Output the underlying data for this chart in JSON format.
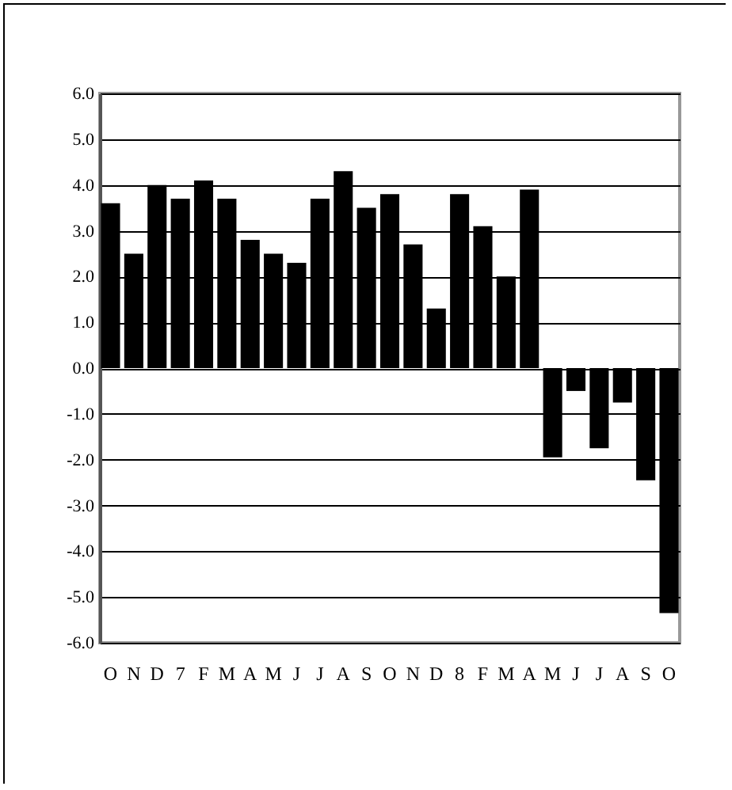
{
  "chart_data": {
    "type": "bar",
    "categories": [
      "O",
      "N",
      "D",
      "7",
      "F",
      "M",
      "A",
      "M",
      "J",
      "J",
      "A",
      "S",
      "O",
      "N",
      "D",
      "8",
      "F",
      "M",
      "A",
      "M",
      "J",
      "J",
      "A",
      "S",
      "O"
    ],
    "values": [
      3.6,
      2.5,
      4.0,
      3.7,
      4.1,
      3.7,
      2.8,
      2.5,
      2.3,
      3.7,
      4.3,
      3.5,
      3.8,
      2.7,
      1.3,
      3.8,
      3.1,
      2.0,
      3.9,
      -1.95,
      -0.5,
      -1.75,
      -0.75,
      -2.45,
      -5.35
    ],
    "color": "#000000",
    "ylim": [
      -6,
      6
    ],
    "yticks": [
      {
        "value": -6,
        "label": "-6.0"
      },
      {
        "value": -5,
        "label": "-5.0"
      },
      {
        "value": -4,
        "label": "-4.0"
      },
      {
        "value": -3,
        "label": "-3.0"
      },
      {
        "value": -2,
        "label": "-2.0"
      },
      {
        "value": -1,
        "label": "-1.0"
      },
      {
        "value": 0,
        "label": "0.0"
      },
      {
        "value": 1,
        "label": "1.0"
      },
      {
        "value": 2,
        "label": "2.0"
      },
      {
        "value": 3,
        "label": "3.0"
      },
      {
        "value": 4,
        "label": "4.0"
      },
      {
        "value": 5,
        "label": "5.0"
      },
      {
        "value": 6,
        "label": "6.0"
      }
    ],
    "grid": "y"
  }
}
